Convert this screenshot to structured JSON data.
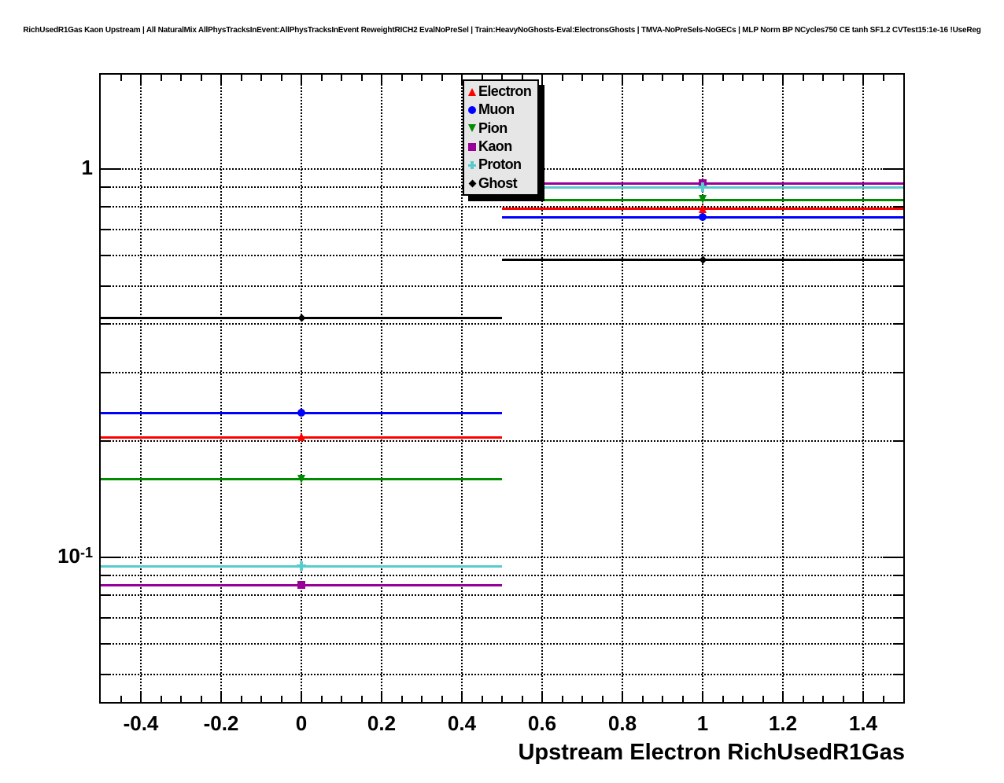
{
  "title": "RichUsedR1Gas Kaon Upstream | All NaturalMix AllPhysTracksInEvent:AllPhysTracksInEvent ReweightRICH2 EvalNoPreSel | Train:HeavyNoGhosts-Eval:ElectronsGhosts | TMVA-NoPreSels-NoGECs | MLP Norm BP NCycles750 CE tanh SF1.2 CVTest15:1e-16 !UseReg",
  "colors": {
    "frame": "#000000",
    "grid": "#000000",
    "legend_bg": "#e6e6e6",
    "canvas_bg": "#ffffff"
  },
  "chart_data": {
    "type": "scatter",
    "title": "RichUsedR1Gas Kaon Upstream efficiency comparison",
    "xlabel": "Upstream Electron RichUsedR1Gas",
    "ylabel": "",
    "yscale": "log",
    "xlim": [
      -0.5,
      1.5
    ],
    "ylim": [
      0.0425,
      1.75
    ],
    "grid": true,
    "legend_position": "top-center",
    "x": [
      0,
      1
    ],
    "bin_half_width": 0.5,
    "x_major_ticks": [
      -0.4,
      -0.2,
      0,
      0.2,
      0.4,
      0.6,
      0.8,
      1,
      1.2,
      1.4
    ],
    "x_tick_labels": [
      "-0.4",
      "-0.2",
      "0",
      "0.2",
      "0.4",
      "0.6",
      "0.8",
      "1",
      "1.2",
      "1.4"
    ],
    "x_minor_step": 0.05,
    "y_major_ticks": [
      1,
      0.1
    ],
    "y_minor_ticks": [
      0.9,
      0.8,
      0.7,
      0.6,
      0.5,
      0.4,
      0.3,
      0.2,
      0.09,
      0.08,
      0.07,
      0.06,
      0.05
    ],
    "y_gridlines": [
      1.0,
      0.9,
      0.8,
      0.7,
      0.6,
      0.5,
      0.4,
      0.3,
      0.2,
      0.1,
      0.09,
      0.08,
      0.07,
      0.06,
      0.05
    ],
    "y_tick_labels": [
      {
        "text": "1",
        "sup": "",
        "value": 1
      },
      {
        "text": "10",
        "sup": "-1",
        "value": 0.1
      }
    ],
    "series": [
      {
        "name": "Electron",
        "color": "#ff0000",
        "marker": "triangle-up",
        "marker_size": 11,
        "values": [
          0.204,
          0.789
        ]
      },
      {
        "name": "Muon",
        "color": "#0000ff",
        "marker": "circle",
        "marker_size": 10,
        "values": [
          0.236,
          0.753
        ]
      },
      {
        "name": "Pion",
        "color": "#008c00",
        "marker": "triangle-down",
        "marker_size": 11,
        "values": [
          0.159,
          0.834
        ]
      },
      {
        "name": "Kaon",
        "color": "#990099",
        "marker": "square",
        "marker_size": 10,
        "values": [
          0.085,
          0.919
        ]
      },
      {
        "name": "Proton",
        "color": "#58cccc",
        "marker": "cross",
        "marker_size": 12,
        "values": [
          0.095,
          0.898
        ]
      },
      {
        "name": "Ghost",
        "color": "#000000",
        "marker": "diamond",
        "marker_size": 7,
        "values": [
          0.413,
          0.583
        ]
      }
    ]
  }
}
